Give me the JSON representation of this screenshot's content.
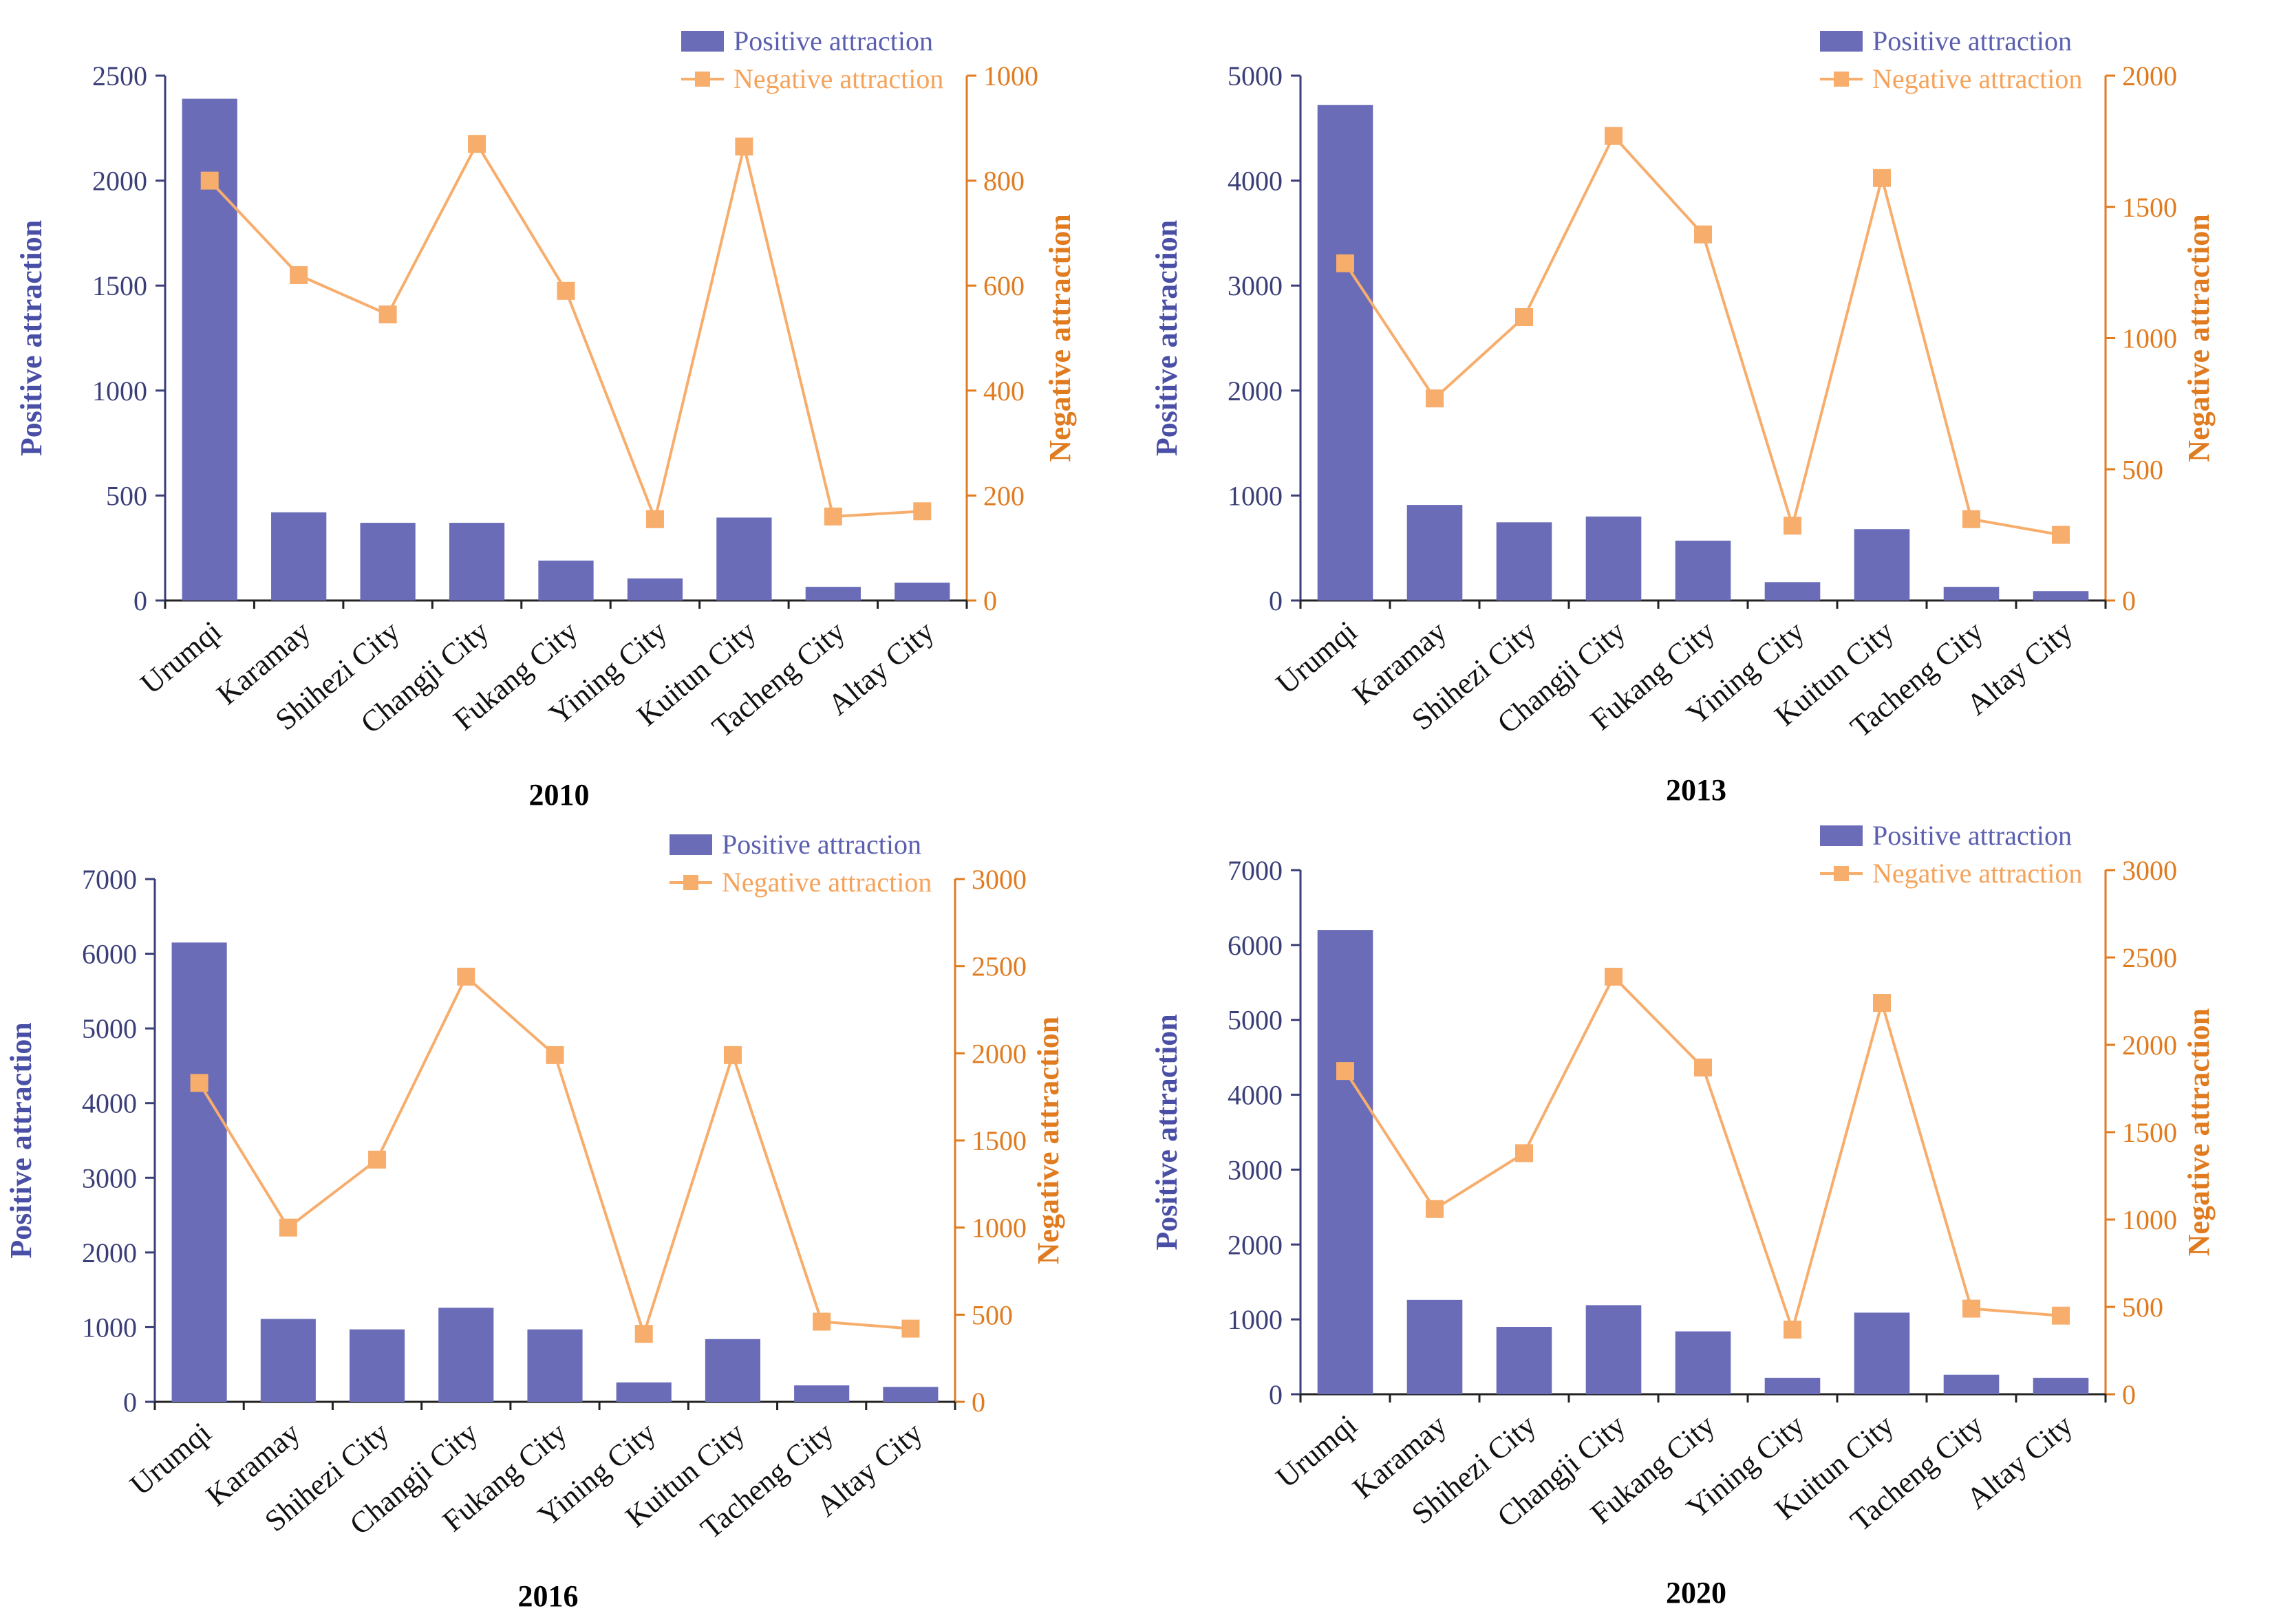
{
  "colors": {
    "bar": "#6a6cb8",
    "line": "#f7ad6c",
    "marker": "#f7ad6c",
    "left_axis": "#3a3f78",
    "right_axis": "#e07b1f",
    "left_label": "#4a4fa6"
  },
  "chart_data": [
    {
      "type": "bar",
      "title": "2010",
      "categories": [
        "Urumqi",
        "Karamay",
        "Shihezi City",
        "Changji City",
        "Fukang City",
        "Yining City",
        "Kuitun City",
        "Tacheng City",
        "Altay City"
      ],
      "series": [
        {
          "name": "Positive attraction",
          "type": "bar",
          "axis": "left",
          "values": [
            2390,
            420,
            370,
            370,
            190,
            105,
            395,
            65,
            85
          ]
        },
        {
          "name": "Negative attraction",
          "type": "line",
          "axis": "right",
          "values": [
            800,
            620,
            545,
            870,
            590,
            155,
            865,
            160,
            170
          ]
        }
      ],
      "ylabel": "Positive attraction",
      "y2label": "Negative attraction",
      "ylim": [
        0,
        2500
      ],
      "y2lim": [
        0,
        1000
      ],
      "yticks": [
        0,
        500,
        1000,
        1500,
        2000,
        2500
      ],
      "y2ticks": [
        0,
        200,
        400,
        600,
        800,
        1000
      ],
      "legend": "top-right"
    },
    {
      "type": "bar",
      "title": "2013",
      "categories": [
        "Urumqi",
        "Karamay",
        "Shihezi City",
        "Changji City",
        "Fukang City",
        "Yining City",
        "Kuitun City",
        "Tacheng City",
        "Altay City"
      ],
      "series": [
        {
          "name": "Positive attraction",
          "type": "bar",
          "axis": "left",
          "values": [
            4720,
            910,
            745,
            800,
            570,
            175,
            680,
            130,
            90
          ]
        },
        {
          "name": "Negative attraction",
          "type": "line",
          "axis": "right",
          "values": [
            1285,
            770,
            1080,
            1770,
            1395,
            285,
            1610,
            310,
            250
          ]
        }
      ],
      "ylabel": "Positive attraction",
      "y2label": "Negative attraction",
      "ylim": [
        0,
        5000
      ],
      "y2lim": [
        0,
        2000
      ],
      "yticks": [
        0,
        1000,
        2000,
        3000,
        4000,
        5000
      ],
      "y2ticks": [
        0,
        500,
        1000,
        1500,
        2000
      ],
      "legend": "top-right"
    },
    {
      "type": "bar",
      "title": "2016",
      "categories": [
        "Urumqi",
        "Karamay",
        "Shihezi City",
        "Changji City",
        "Fukang City",
        "Yining City",
        "Kuitun City",
        "Tacheng City",
        "Altay City"
      ],
      "series": [
        {
          "name": "Positive attraction",
          "type": "bar",
          "axis": "left",
          "values": [
            6150,
            1110,
            970,
            1260,
            970,
            260,
            840,
            220,
            200
          ]
        },
        {
          "name": "Negative attraction",
          "type": "line",
          "axis": "right",
          "values": [
            1830,
            1000,
            1390,
            2440,
            1990,
            390,
            1990,
            460,
            420
          ]
        }
      ],
      "ylabel": "Positive attraction",
      "y2label": "Negative attraction",
      "ylim": [
        0,
        7000
      ],
      "y2lim": [
        0,
        3000
      ],
      "yticks": [
        0,
        1000,
        2000,
        3000,
        4000,
        5000,
        6000,
        7000
      ],
      "y2ticks": [
        0,
        500,
        1000,
        1500,
        2000,
        2500,
        3000
      ],
      "legend": "top-right"
    },
    {
      "type": "bar",
      "title": "2020",
      "categories": [
        "Urumqi",
        "Karamay",
        "Shihezi City",
        "Changji City",
        "Fukang City",
        "Yining City",
        "Kuitun City",
        "Tacheng City",
        "Altay City"
      ],
      "series": [
        {
          "name": "Positive attraction",
          "type": "bar",
          "axis": "left",
          "values": [
            6200,
            1260,
            900,
            1190,
            840,
            220,
            1090,
            260,
            220
          ]
        },
        {
          "name": "Negative attraction",
          "type": "line",
          "axis": "right",
          "values": [
            1850,
            1060,
            1380,
            2390,
            1870,
            370,
            2240,
            490,
            450
          ]
        }
      ],
      "ylabel": "Positive attraction",
      "y2label": "Negative attraction",
      "ylim": [
        0,
        7000
      ],
      "y2lim": [
        0,
        3000
      ],
      "yticks": [
        0,
        1000,
        2000,
        3000,
        4000,
        5000,
        6000,
        7000
      ],
      "y2ticks": [
        0,
        500,
        1000,
        1500,
        2000,
        2500,
        3000
      ],
      "legend": "top-right"
    }
  ]
}
